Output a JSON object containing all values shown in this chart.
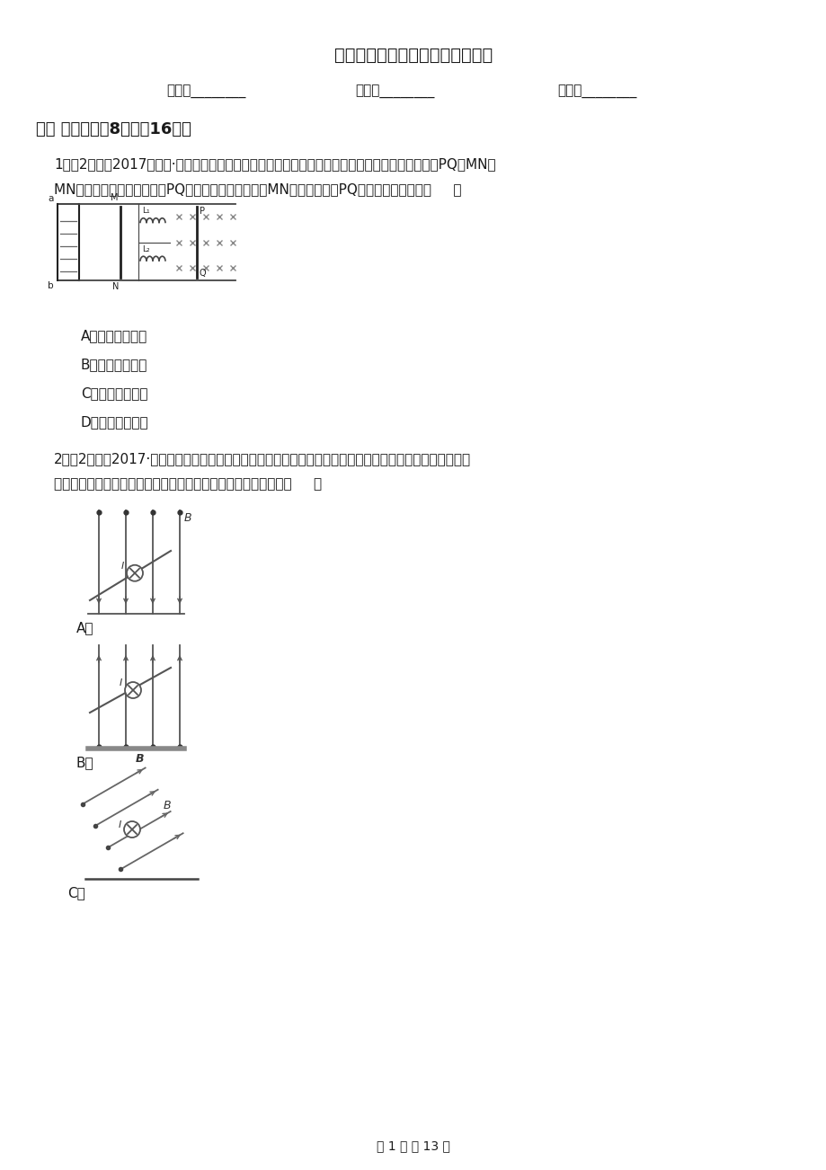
{
  "title": "高二下学期物理线上教学检测试卷",
  "name_label": "姓名：________",
  "class_label": "班级：________",
  "score_label": "成绩：________",
  "section1_title": "一、 单选题（共8题；共16分）",
  "q1_text1": "1．（2分）（2017高二下·淮北期中）如图所示，水平放置的两条光滑轨道上有可自由移动的金属棒PQ、MN，",
  "q1_text2": "MN的左边有一闭合电路，当PQ在外力作用下运动时，MN向右运动，则PQ所做的运动可能是（     ）",
  "q1_optA": "A．向右匀速运动",
  "q1_optB": "B．向左匀速运动",
  "q1_optC": "C．向右减速运动",
  "q1_optD": "D．向左减速运动",
  "q2_text1": "2．（2分）（2017·深圳模拟）通电导体棒水平放置在绝缘斜面上，整个装置置于匀强磁场中，导体棒能保持",
  "q2_text2": "静止状态，以下四种情况中导体棒与斜面间一定存在摩擦力的是（     ）",
  "page_footer": "第 1 页 共 13 页",
  "bg_color": "#ffffff",
  "text_color": "#1a1a1a"
}
